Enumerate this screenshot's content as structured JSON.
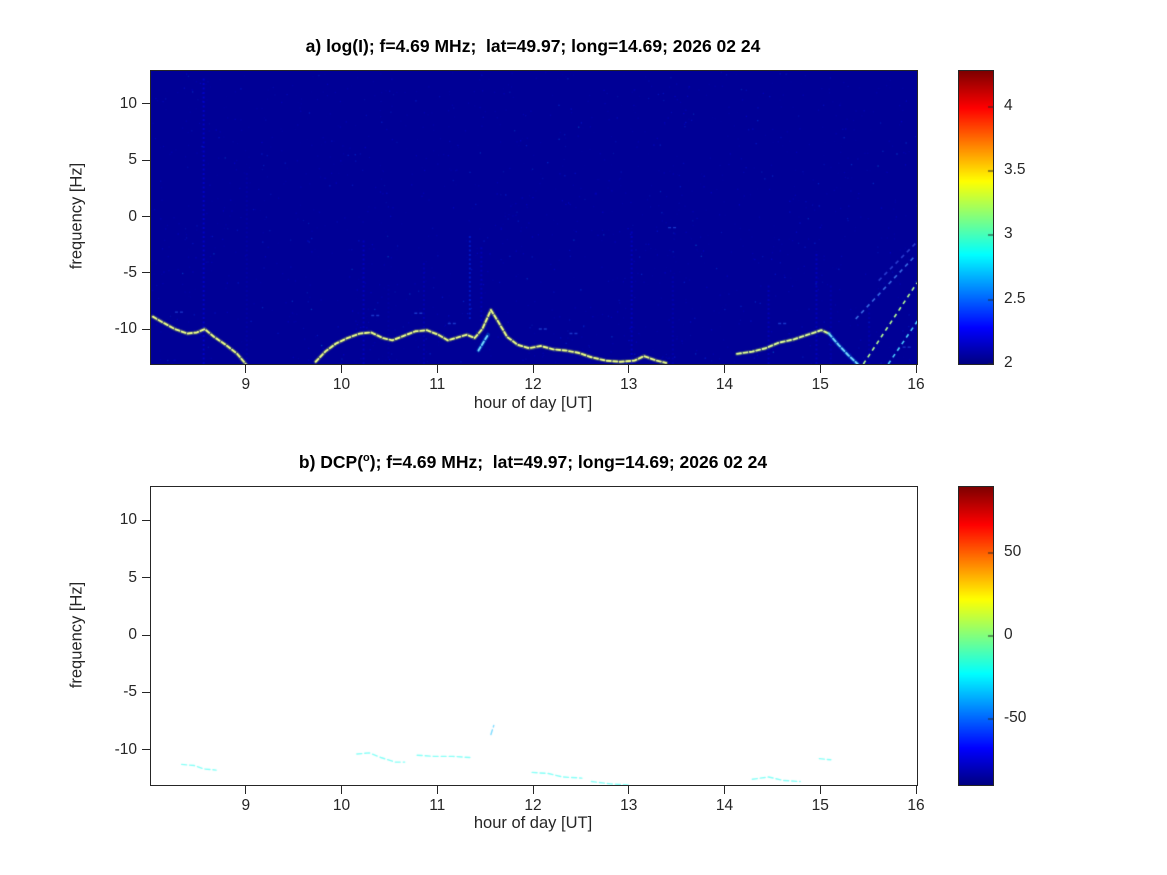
{
  "figure": {
    "background": "#ffffff"
  },
  "chart_data": [
    {
      "id": "panel-a",
      "type": "heatmap",
      "title": "a) log(I); f=4.69 MHz;  lat=49.97; long=14.69; 2026 02 24",
      "xlabel": "hour of day [UT]",
      "ylabel": "frequency [Hz]",
      "xlim": [
        8,
        16
      ],
      "ylim": [
        -13,
        13
      ],
      "xticks": [
        9,
        10,
        11,
        12,
        13,
        14,
        15,
        16
      ],
      "yticks": [
        10,
        5,
        0,
        -5,
        -10
      ],
      "colormap": "jet",
      "clim": [
        2,
        4.28
      ],
      "colorbar_ticks": [
        4,
        3.5,
        3,
        2.5,
        2
      ],
      "background_value": 2.05,
      "trace_segments": [
        {
          "name": "morning-descent",
          "value": 3.35,
          "points": [
            [
              8.02,
              -8.8
            ],
            [
              8.12,
              -9.3
            ],
            [
              8.25,
              -9.9
            ],
            [
              8.38,
              -10.3
            ],
            [
              8.48,
              -10.2
            ],
            [
              8.56,
              -9.9
            ],
            [
              8.66,
              -10.6
            ],
            [
              8.78,
              -11.3
            ],
            [
              8.9,
              -12.1
            ],
            [
              8.99,
              -13.0
            ]
          ]
        },
        {
          "name": "midday-wave",
          "value": 3.35,
          "points": [
            [
              9.72,
              -12.8
            ],
            [
              9.82,
              -11.9
            ],
            [
              9.93,
              -11.2
            ],
            [
              10.05,
              -10.7
            ],
            [
              10.18,
              -10.3
            ],
            [
              10.3,
              -10.2
            ],
            [
              10.42,
              -10.7
            ],
            [
              10.52,
              -10.9
            ],
            [
              10.64,
              -10.5
            ],
            [
              10.76,
              -10.1
            ],
            [
              10.88,
              -10.0
            ],
            [
              11.0,
              -10.4
            ],
            [
              11.1,
              -10.9
            ],
            [
              11.22,
              -10.6
            ],
            [
              11.3,
              -10.4
            ],
            [
              11.38,
              -10.7
            ],
            [
              11.46,
              -9.9
            ],
            [
              11.55,
              -8.2
            ],
            [
              11.63,
              -9.3
            ],
            [
              11.72,
              -10.6
            ],
            [
              11.83,
              -11.3
            ],
            [
              11.95,
              -11.6
            ],
            [
              12.07,
              -11.4
            ],
            [
              12.2,
              -11.7
            ],
            [
              12.33,
              -11.8
            ],
            [
              12.46,
              -12.0
            ],
            [
              12.6,
              -12.4
            ],
            [
              12.75,
              -12.7
            ],
            [
              12.9,
              -12.8
            ],
            [
              13.05,
              -12.7
            ],
            [
              13.15,
              -12.3
            ],
            [
              13.28,
              -12.7
            ],
            [
              13.38,
              -12.9
            ]
          ]
        },
        {
          "name": "afternoon-arc",
          "value": 3.3,
          "points": [
            [
              14.12,
              -12.1
            ],
            [
              14.28,
              -11.9
            ],
            [
              14.42,
              -11.6
            ],
            [
              14.56,
              -11.1
            ],
            [
              14.72,
              -10.8
            ],
            [
              14.86,
              -10.4
            ],
            [
              15.0,
              -10.0
            ],
            [
              15.08,
              -10.3
            ]
          ]
        },
        {
          "name": "afternoon-descent",
          "value": 2.7,
          "points": [
            [
              15.08,
              -10.3
            ],
            [
              15.18,
              -11.3
            ],
            [
              15.28,
              -12.2
            ],
            [
              15.38,
              -13.0
            ]
          ]
        },
        {
          "name": "peak-echo-dash",
          "value": 2.7,
          "points": [
            [
              11.42,
              -11.8
            ],
            [
              11.52,
              -10.4
            ]
          ]
        }
      ],
      "streaks": [
        {
          "name": "streak-1",
          "value": 3.2,
          "alpha": 1,
          "points": [
            [
              15.44,
              -13.0
            ],
            [
              16.0,
              -5.8
            ]
          ]
        },
        {
          "name": "streak-2",
          "value": 2.7,
          "alpha": 1,
          "points": [
            [
              15.7,
              -13.0
            ],
            [
              16.02,
              -9.0
            ]
          ]
        },
        {
          "name": "streak-3",
          "value": 2.5,
          "alpha": 0.75,
          "points": [
            [
              15.36,
              -9.0
            ],
            [
              15.97,
              -3.5
            ]
          ]
        },
        {
          "name": "streak-4",
          "value": 2.4,
          "alpha": 0.55,
          "points": [
            [
              15.6,
              -5.6
            ],
            [
              16.02,
              -2.0
            ]
          ]
        }
      ],
      "vertical_stripes": [
        {
          "x": 8.55,
          "y1": -13,
          "y2": 12.5,
          "value": 2.3,
          "alpha": 0.45
        },
        {
          "x": 9.0,
          "y1": -13,
          "y2": 4,
          "value": 2.2,
          "alpha": 0.22
        },
        {
          "x": 10.22,
          "y1": -13,
          "y2": -2,
          "value": 2.3,
          "alpha": 0.35
        },
        {
          "x": 10.48,
          "y1": -12.5,
          "y2": -6,
          "value": 2.2,
          "alpha": 0.2
        },
        {
          "x": 10.85,
          "y1": -13,
          "y2": -4,
          "value": 2.25,
          "alpha": 0.3
        },
        {
          "x": 11.33,
          "y1": -9,
          "y2": -1.5,
          "value": 2.4,
          "alpha": 0.45
        },
        {
          "x": 11.45,
          "y1": -10,
          "y2": -2.5,
          "value": 2.3,
          "alpha": 0.3
        },
        {
          "x": 13.02,
          "y1": -13,
          "y2": -1,
          "value": 2.3,
          "alpha": 0.35
        },
        {
          "x": 13.45,
          "y1": -13,
          "y2": -5,
          "value": 2.25,
          "alpha": 0.25
        },
        {
          "x": 14.45,
          "y1": -13,
          "y2": -6,
          "value": 2.3,
          "alpha": 0.3
        },
        {
          "x": 14.95,
          "y1": -13,
          "y2": -3,
          "value": 2.3,
          "alpha": 0.35
        },
        {
          "x": 15.1,
          "y1": -13,
          "y2": -6,
          "value": 2.25,
          "alpha": 0.25
        },
        {
          "x": 15.5,
          "y1": -13,
          "y2": -8,
          "value": 2.25,
          "alpha": 0.25
        }
      ],
      "echo_dashes": [
        [
          8.3,
          -8.4
        ],
        [
          10.35,
          -8.7
        ],
        [
          10.8,
          -8.5
        ],
        [
          11.15,
          -9.4
        ],
        [
          12.1,
          -9.9
        ],
        [
          12.42,
          -10.3
        ],
        [
          13.45,
          -0.9
        ],
        [
          14.6,
          -9.4
        ],
        [
          15.9,
          -11.5
        ]
      ]
    },
    {
      "id": "panel-b",
      "type": "heatmap",
      "title_parts": {
        "pre": "b) DCP(",
        "sup": "o",
        "post": "); f=4.69 MHz;  lat=49.97; long=14.69; 2026 02 24"
      },
      "xlabel": "hour of day [UT]",
      "ylabel": "frequency [Hz]",
      "xlim": [
        8,
        16
      ],
      "ylim": [
        -13,
        13
      ],
      "xticks": [
        9,
        10,
        11,
        12,
        13,
        14,
        15,
        16
      ],
      "yticks": [
        10,
        5,
        0,
        -5,
        -10
      ],
      "colormap": "jet",
      "clim": [
        -90,
        90
      ],
      "colorbar_ticks": [
        50,
        0,
        -50
      ],
      "background_value": null,
      "trace_segments": [
        {
          "name": "dcp-dash-1",
          "value": -20,
          "points": [
            [
              8.32,
              -11.2
            ],
            [
              8.45,
              -11.3
            ],
            [
              8.55,
              -11.6
            ],
            [
              8.68,
              -11.7
            ]
          ]
        },
        {
          "name": "dcp-dash-2",
          "value": -20,
          "points": [
            [
              10.15,
              -10.3
            ],
            [
              10.28,
              -10.2
            ],
            [
              10.4,
              -10.6
            ],
            [
              10.55,
              -11.0
            ],
            [
              10.65,
              -11.0
            ]
          ]
        },
        {
          "name": "dcp-dash-3",
          "value": -20,
          "points": [
            [
              10.78,
              -10.4
            ],
            [
              10.95,
              -10.5
            ],
            [
              11.15,
              -10.5
            ],
            [
              11.33,
              -10.6
            ]
          ]
        },
        {
          "name": "dcp-dash-4",
          "value": -35,
          "points": [
            [
              11.55,
              -8.6
            ],
            [
              11.58,
              -7.8
            ]
          ]
        },
        {
          "name": "dcp-dash-5",
          "value": -20,
          "points": [
            [
              11.98,
              -11.9
            ],
            [
              12.15,
              -12.0
            ],
            [
              12.3,
              -12.3
            ],
            [
              12.5,
              -12.4
            ]
          ]
        },
        {
          "name": "dcp-dash-6",
          "value": -20,
          "points": [
            [
              12.6,
              -12.7
            ],
            [
              12.8,
              -12.9
            ],
            [
              13.0,
              -13.0
            ]
          ]
        },
        {
          "name": "dcp-dash-7",
          "value": -20,
          "points": [
            [
              14.28,
              -12.5
            ],
            [
              14.45,
              -12.3
            ],
            [
              14.6,
              -12.6
            ],
            [
              14.78,
              -12.7
            ]
          ]
        },
        {
          "name": "dcp-dash-8",
          "value": -20,
          "points": [
            [
              14.98,
              -10.7
            ],
            [
              15.1,
              -10.8
            ]
          ]
        }
      ],
      "streaks": [],
      "vertical_stripes": [],
      "echo_dashes": []
    }
  ]
}
